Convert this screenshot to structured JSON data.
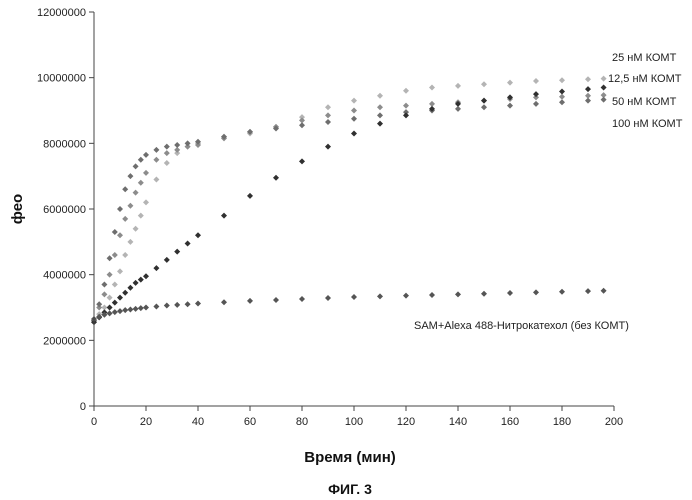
{
  "caption": "ФИГ. 3",
  "chart_data": {
    "type": "scatter",
    "xlabel": "Время (мин)",
    "ylabel": "фео",
    "xlim": [
      0,
      200
    ],
    "ylim": [
      0,
      12000000
    ],
    "x_ticks": [
      "0",
      "20",
      "40",
      "60",
      "80",
      "100",
      "120",
      "140",
      "160",
      "180",
      "200"
    ],
    "y_ticks": [
      "0",
      "2000000",
      "4000000",
      "6000000",
      "8000000",
      "10000000",
      "12000000"
    ],
    "grid": false,
    "legend": "series labels placed beside curves (right side)",
    "x": [
      0,
      2,
      4,
      6,
      8,
      10,
      12,
      14,
      16,
      18,
      20,
      24,
      28,
      32,
      36,
      40,
      50,
      60,
      70,
      80,
      90,
      100,
      110,
      120,
      130,
      140,
      150,
      160,
      170,
      180,
      190,
      196
    ],
    "series": [
      {
        "name": "25 нМ КОМТ",
        "color": "#b4b4b4",
        "values": [
          2600000,
          2800000,
          3000000,
          3300000,
          3700000,
          4100000,
          4600000,
          5000000,
          5400000,
          5800000,
          6200000,
          6900000,
          7400000,
          7700000,
          7900000,
          8000000,
          8200000,
          8300000,
          8500000,
          8800000,
          9100000,
          9300000,
          9450000,
          9600000,
          9700000,
          9750000,
          9800000,
          9850000,
          9900000,
          9920000,
          9950000,
          9970000
        ]
      },
      {
        "name": "12,5 нМ КОМТ",
        "color": "#8c8c8c",
        "values": [
          2600000,
          3000000,
          3400000,
          4000000,
          4600000,
          5200000,
          5700000,
          6100000,
          6500000,
          6800000,
          7100000,
          7500000,
          7700000,
          7800000,
          7900000,
          7950000,
          8150000,
          8350000,
          8500000,
          8700000,
          8850000,
          9000000,
          9100000,
          9150000,
          9200000,
          9250000,
          9300000,
          9350000,
          9400000,
          9420000,
          9450000,
          9470000
        ]
      },
      {
        "name": "50 нМ КОМТ",
        "color": "#6e6e6e",
        "values": [
          2600000,
          3100000,
          3700000,
          4500000,
          5300000,
          6000000,
          6600000,
          7000000,
          7300000,
          7500000,
          7650000,
          7800000,
          7900000,
          7950000,
          8000000,
          8050000,
          8200000,
          8350000,
          8450000,
          8550000,
          8650000,
          8750000,
          8850000,
          8950000,
          9000000,
          9050000,
          9100000,
          9150000,
          9200000,
          9250000,
          9300000,
          9330000
        ]
      },
      {
        "name": "100 нМ КОМТ",
        "color": "#303030",
        "values": [
          2550000,
          2700000,
          2850000,
          3000000,
          3150000,
          3300000,
          3450000,
          3600000,
          3750000,
          3850000,
          3950000,
          4200000,
          4450000,
          4700000,
          4950000,
          5200000,
          5800000,
          6400000,
          6950000,
          7450000,
          7900000,
          8300000,
          8600000,
          8850000,
          9050000,
          9200000,
          9300000,
          9400000,
          9500000,
          9580000,
          9650000,
          9700000
        ]
      },
      {
        "name": "SAM+Alexa 488-Нитрокатехол (без КОМТ)",
        "color": "#555555",
        "values": [
          2650000,
          2720000,
          2780000,
          2820000,
          2860000,
          2890000,
          2920000,
          2940000,
          2960000,
          2980000,
          3000000,
          3030000,
          3060000,
          3080000,
          3100000,
          3120000,
          3160000,
          3200000,
          3230000,
          3260000,
          3290000,
          3320000,
          3340000,
          3360000,
          3380000,
          3400000,
          3420000,
          3440000,
          3460000,
          3480000,
          3500000,
          3510000
        ]
      }
    ]
  }
}
